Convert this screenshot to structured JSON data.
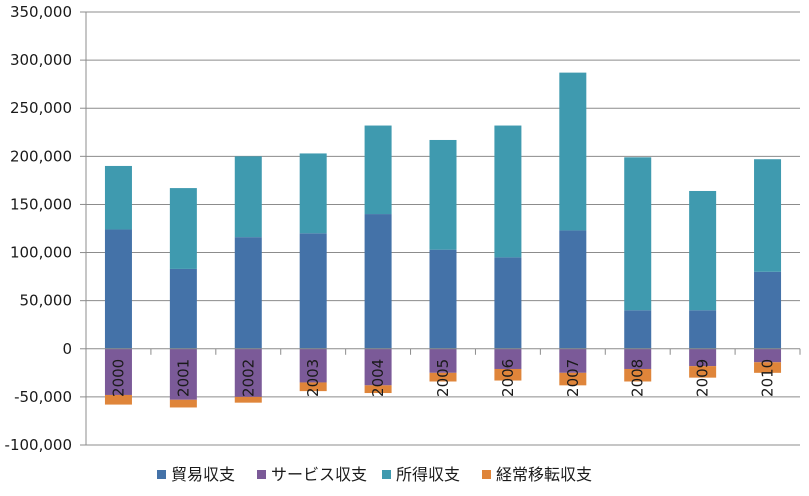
{
  "chart_data": {
    "type": "bar",
    "stacked": true,
    "categories": [
      "2000",
      "2001",
      "2002",
      "2003",
      "2004",
      "2005",
      "2006",
      "2007",
      "2008",
      "2009",
      "2010"
    ],
    "series": [
      {
        "name": "貿易収支",
        "color": "#4472A8",
        "values": [
          124000,
          83000,
          116000,
          120000,
          140000,
          103000,
          95000,
          123000,
          40000,
          40000,
          80000
        ]
      },
      {
        "name": "サービス収支",
        "color": "#7B5A98",
        "values": [
          -48000,
          -53000,
          -50000,
          -35000,
          -38000,
          -25000,
          -21000,
          -25000,
          -21000,
          -18000,
          -14000
        ]
      },
      {
        "name": "所得収支",
        "color": "#3F9AAF",
        "values": [
          66000,
          84000,
          84000,
          83000,
          92000,
          114000,
          137000,
          164000,
          159000,
          124000,
          117000
        ]
      },
      {
        "name": "経常移転収支",
        "color": "#DF853A",
        "values": [
          -10000,
          -8000,
          -6000,
          -9000,
          -8000,
          -9000,
          -12000,
          -13000,
          -13000,
          -12000,
          -11000
        ]
      }
    ],
    "ylim": [
      -100000,
      350000
    ],
    "y_ticks": [
      "-100,000",
      "-50,000",
      "0",
      "50,000",
      "100,000",
      "150,000",
      "200,000",
      "250,000",
      "300,000",
      "350,000"
    ],
    "grid": true,
    "legend_position": "bottom"
  }
}
